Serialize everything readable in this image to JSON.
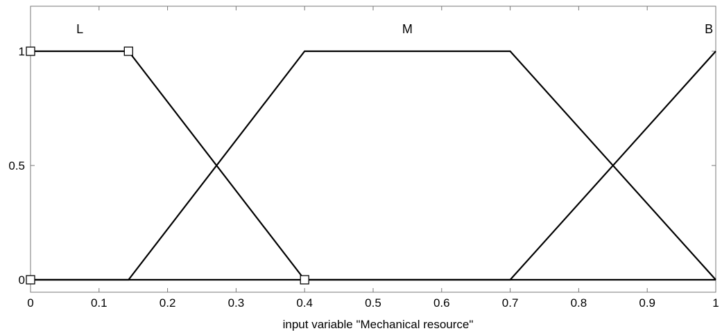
{
  "chart_data": {
    "type": "line",
    "title": "",
    "xlabel": "input variable \"Mechanical resource\"",
    "ylabel": "",
    "xlim": [
      0,
      1
    ],
    "ylim": [
      -0.05,
      1.2
    ],
    "grid": false,
    "x_ticks": [
      {
        "value": 0,
        "label": "0"
      },
      {
        "value": 0.1,
        "label": "0.1"
      },
      {
        "value": 0.2,
        "label": "0.2"
      },
      {
        "value": 0.3,
        "label": "0.3"
      },
      {
        "value": 0.4,
        "label": "0.4"
      },
      {
        "value": 0.5,
        "label": "0.5"
      },
      {
        "value": 0.6,
        "label": "0.6"
      },
      {
        "value": 0.7,
        "label": "0.7"
      },
      {
        "value": 0.8,
        "label": "0.8"
      },
      {
        "value": 0.9,
        "label": "0.9"
      },
      {
        "value": 1,
        "label": "1"
      }
    ],
    "y_ticks": [
      {
        "value": 0,
        "label": "0"
      },
      {
        "value": 0.5,
        "label": "0.5"
      },
      {
        "value": 1,
        "label": "1"
      }
    ],
    "series": [
      {
        "name": "L",
        "x": [
          0,
          0.143,
          0.4,
          1
        ],
        "y": [
          1,
          1,
          0,
          0
        ]
      },
      {
        "name": "M",
        "x": [
          0,
          0.143,
          0.4,
          0.7,
          1
        ],
        "y": [
          0,
          0,
          1,
          1,
          0
        ]
      },
      {
        "name": "B",
        "x": [
          0,
          0.7,
          1
        ],
        "y": [
          0,
          0,
          1
        ]
      }
    ],
    "mf_labels": [
      {
        "text": "L",
        "x": 0.072
      },
      {
        "text": "M",
        "x": 0.55
      },
      {
        "text": "B",
        "x": 0.99
      }
    ],
    "markers": [
      {
        "x": 0,
        "y": 1
      },
      {
        "x": 0.143,
        "y": 1
      },
      {
        "x": 0,
        "y": 0
      },
      {
        "x": 0.4,
        "y": 0
      }
    ]
  }
}
